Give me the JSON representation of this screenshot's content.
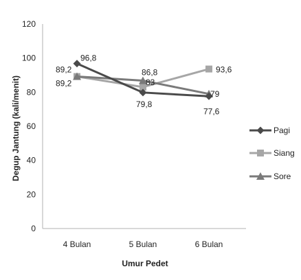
{
  "chart_data": {
    "type": "line",
    "xlabel": "Umur Pedet",
    "ylabel": "Degup Jantung (kali/menit)",
    "ylim": [
      0,
      120
    ],
    "yticks": [
      0,
      20,
      40,
      60,
      80,
      100,
      120
    ],
    "categories": [
      "4 Bulan",
      "5 Bulan",
      "6 Bulan"
    ],
    "series": [
      {
        "name": "Pagi",
        "values": [
          96.8,
          79.8,
          77.6
        ],
        "labels": [
          "96,8",
          "79,8",
          "77,6"
        ],
        "color": "#4a4a4a",
        "marker": "diamond"
      },
      {
        "name": "Siang",
        "values": [
          89.2,
          83,
          93.6
        ],
        "labels": [
          "89,2",
          "83",
          "93,6"
        ],
        "color": "#a6a6a6",
        "marker": "square"
      },
      {
        "name": "Sore",
        "values": [
          89.2,
          86.8,
          79
        ],
        "labels": [
          "89,2",
          "86,8",
          "79"
        ],
        "color": "#7a7a7a",
        "marker": "triangle"
      }
    ],
    "grid": false,
    "legend": "right"
  }
}
